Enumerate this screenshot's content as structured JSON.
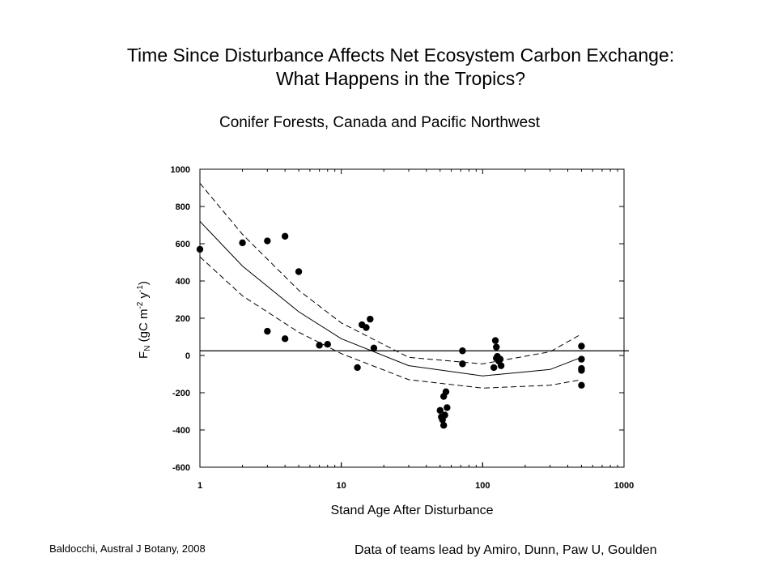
{
  "slide": {
    "title_line1": "Time Since Disturbance Affects Net Ecosystem Carbon Exchange:",
    "title_line2": "What Happens in the Tropics?",
    "citation_left": "Baldocchi, Austral J Botany, 2008",
    "citation_right": "Data of teams lead by Amiro, Dunn, Paw U, Goulden"
  },
  "chart_data": {
    "type": "scatter",
    "title": "Conifer Forests, Canada and Pacific Northwest",
    "xlabel": "Stand Age After Disturbance",
    "ylabel": {
      "base": "F",
      "sub": "N",
      "text": " (gC m",
      "sup1": "-2",
      "text2": " y",
      "sup2": "-1",
      "close": ")"
    },
    "x_scale": "log",
    "xlim": [
      1,
      1000
    ],
    "ylim": [
      -600,
      1000
    ],
    "x_ticks": [
      1,
      10,
      100,
      1000
    ],
    "y_ticks": [
      1000,
      800,
      600,
      400,
      200,
      0,
      -200,
      -400,
      -600
    ],
    "reference_line_y": 25,
    "marker_color": "#000000",
    "points": [
      {
        "x": 1,
        "y": 570
      },
      {
        "x": 2,
        "y": 605
      },
      {
        "x": 3,
        "y": 615
      },
      {
        "x": 4,
        "y": 640
      },
      {
        "x": 5,
        "y": 450
      },
      {
        "x": 3,
        "y": 130
      },
      {
        "x": 4,
        "y": 90
      },
      {
        "x": 7,
        "y": 55
      },
      {
        "x": 8,
        "y": 60
      },
      {
        "x": 13,
        "y": -65
      },
      {
        "x": 14,
        "y": 165
      },
      {
        "x": 15,
        "y": 150
      },
      {
        "x": 16,
        "y": 195
      },
      {
        "x": 17,
        "y": 40
      },
      {
        "x": 50,
        "y": -295
      },
      {
        "x": 51,
        "y": -330
      },
      {
        "x": 52,
        "y": -345
      },
      {
        "x": 53,
        "y": -375
      },
      {
        "x": 54,
        "y": -320
      },
      {
        "x": 53,
        "y": -220
      },
      {
        "x": 55,
        "y": -195
      },
      {
        "x": 56,
        "y": -280
      },
      {
        "x": 72,
        "y": 25
      },
      {
        "x": 72,
        "y": -45
      },
      {
        "x": 123,
        "y": 80
      },
      {
        "x": 125,
        "y": 45
      },
      {
        "x": 125,
        "y": -15
      },
      {
        "x": 127,
        "y": -5
      },
      {
        "x": 130,
        "y": -30
      },
      {
        "x": 133,
        "y": -20
      },
      {
        "x": 120,
        "y": -65
      },
      {
        "x": 135,
        "y": -55
      },
      {
        "x": 500,
        "y": 50
      },
      {
        "x": 500,
        "y": -20
      },
      {
        "x": 500,
        "y": -70
      },
      {
        "x": 500,
        "y": -80
      },
      {
        "x": 500,
        "y": -160
      }
    ],
    "fit_curves": [
      {
        "style": "solid",
        "x": [
          1,
          2,
          5,
          10,
          30,
          100,
          300,
          500
        ],
        "y": [
          720,
          480,
          235,
          90,
          -55,
          -110,
          -75,
          -10
        ]
      },
      {
        "style": "dashed",
        "x": [
          1,
          2,
          5,
          10,
          30,
          100,
          300,
          500
        ],
        "y": [
          925,
          650,
          350,
          175,
          -10,
          -45,
          20,
          115
        ]
      },
      {
        "style": "dashed",
        "x": [
          1,
          2,
          5,
          10,
          30,
          100,
          300,
          500
        ],
        "y": [
          530,
          320,
          125,
          10,
          -130,
          -175,
          -160,
          -130
        ]
      }
    ]
  }
}
